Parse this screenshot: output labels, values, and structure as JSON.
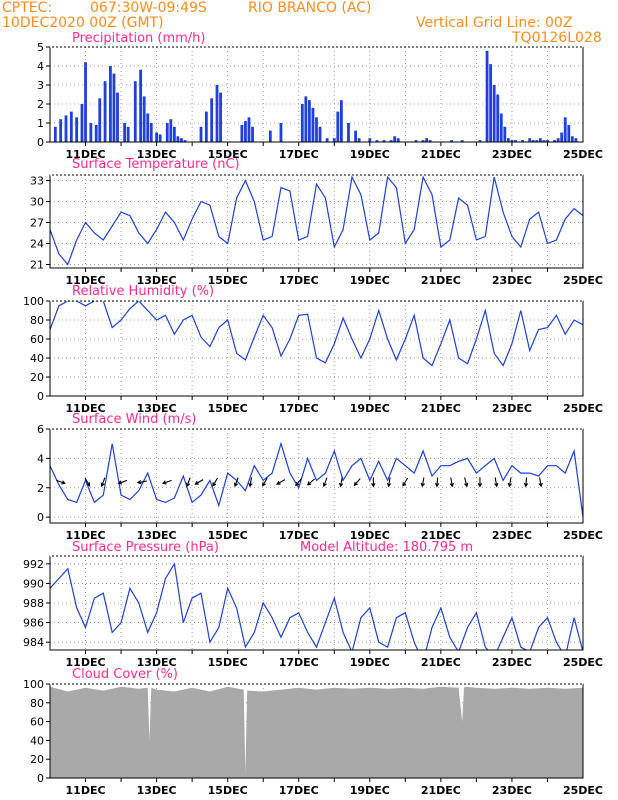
{
  "header": {
    "agency": "CPTEC:",
    "coords": "067:30W-09:49S",
    "station": "RIO BRANCO (AC)",
    "datetime": "10DEC2020 00Z (GMT)",
    "grid_line": "Vertical Grid Line: 00Z",
    "code": "TQ0126L028"
  },
  "x_axis": {
    "start": "10DEC2020 00Z",
    "end": "25DEC2020 00Z",
    "tick_labels": [
      "11DEC",
      "13DEC",
      "15DEC",
      "17DEC",
      "19DEC",
      "21DEC",
      "23DEC",
      "25DEC"
    ]
  },
  "colors": {
    "line": "#1f3fe0",
    "bars": "#1f3fe0",
    "cloud": "#a9a9a9",
    "title": "#ff2a8f",
    "header": "#ff8c1a",
    "arrow": "#000000"
  },
  "chart_data": [
    {
      "id": "precip",
      "type": "bar",
      "title": "Precipitation (mm/h)",
      "ylim": [
        0,
        5
      ],
      "yticks": [
        0,
        1,
        2,
        3,
        4,
        5
      ],
      "grid": true,
      "x_unit": "day since 10DEC2020 00Z",
      "x": [
        0.15,
        0.3,
        0.45,
        0.6,
        0.75,
        0.9,
        1.0,
        1.15,
        1.3,
        1.4,
        1.55,
        1.7,
        1.8,
        1.9,
        2.1,
        2.2,
        2.4,
        2.55,
        2.65,
        2.75,
        2.85,
        3.0,
        3.1,
        3.3,
        3.4,
        3.5,
        3.6,
        3.7,
        3.8,
        3.9,
        4.1,
        4.25,
        4.4,
        4.55,
        4.7,
        4.8,
        5.4,
        5.5,
        5.6,
        5.7,
        6.2,
        6.5,
        7.1,
        7.2,
        7.3,
        7.4,
        7.5,
        7.6,
        7.8,
        8.0,
        8.1,
        8.2,
        8.4,
        8.6,
        8.7,
        9.0,
        9.2,
        9.4,
        9.6,
        9.7,
        9.8,
        10.3,
        10.5,
        10.6,
        10.7,
        11.1,
        11.2,
        11.3,
        11.4,
        11.5,
        11.6,
        12.1,
        12.3,
        12.4,
        12.5,
        12.6,
        12.7,
        12.8,
        12.9,
        13.0,
        13.1,
        13.2,
        13.3,
        13.5,
        13.6,
        13.7,
        13.8,
        13.9,
        14.0,
        14.1,
        14.2,
        14.3,
        14.4,
        14.5,
        14.6,
        14.7,
        14.8,
        14.9
      ],
      "values": [
        0.8,
        1.2,
        1.4,
        1.6,
        1.3,
        2.0,
        4.2,
        1.0,
        0.9,
        2.3,
        3.2,
        4.0,
        3.6,
        2.6,
        1.0,
        0.8,
        3.2,
        3.8,
        2.4,
        1.5,
        1.0,
        0.5,
        0.4,
        1.0,
        1.2,
        0.8,
        0.3,
        0.2,
        0.1,
        0.0,
        0.0,
        0.8,
        1.6,
        2.3,
        3.0,
        2.6,
        0.9,
        1.1,
        1.3,
        0.8,
        0.6,
        1.0,
        2.0,
        2.4,
        2.2,
        1.8,
        1.3,
        0.8,
        0.2,
        0.2,
        1.6,
        2.2,
        1.0,
        0.6,
        0.2,
        0.2,
        0.1,
        0.1,
        0.1,
        0.3,
        0.2,
        0.1,
        0.1,
        0.2,
        0.1,
        0.0,
        0.0,
        0.1,
        0.0,
        0.0,
        0.1,
        0.1,
        4.8,
        4.1,
        3.0,
        2.5,
        1.5,
        0.8,
        0.2,
        0.1,
        0.1,
        0.0,
        0.1,
        0.2,
        0.1,
        0.1,
        0.2,
        0.1,
        0.1,
        0.0,
        0.1,
        0.2,
        0.5,
        1.3,
        0.9,
        0.3,
        0.2,
        0.0
      ]
    },
    {
      "id": "temp",
      "type": "line",
      "title": "Surface Temperature (nC)",
      "ylim": [
        20.5,
        33.8
      ],
      "yticks": [
        21,
        24,
        27,
        30,
        33
      ],
      "grid": true,
      "x_unit": "day since 10DEC2020 00Z",
      "x": [
        0,
        0.25,
        0.5,
        0.75,
        1,
        1.25,
        1.5,
        1.75,
        2,
        2.25,
        2.5,
        2.75,
        3,
        3.25,
        3.5,
        3.75,
        4,
        4.25,
        4.5,
        4.75,
        5,
        5.25,
        5.5,
        5.75,
        6,
        6.25,
        6.5,
        6.75,
        7,
        7.25,
        7.5,
        7.75,
        8,
        8.25,
        8.5,
        8.75,
        9,
        9.25,
        9.5,
        9.75,
        10,
        10.25,
        10.5,
        10.75,
        11,
        11.25,
        11.5,
        11.75,
        12,
        12.25,
        12.5,
        12.75,
        13,
        13.25,
        13.5,
        13.75,
        14,
        14.25,
        14.5,
        14.75,
        15
      ],
      "values": [
        26.0,
        22.5,
        21.0,
        24.5,
        27.0,
        25.5,
        24.5,
        26.5,
        28.5,
        28.0,
        25.5,
        24.0,
        26.0,
        28.5,
        27.0,
        24.5,
        27.5,
        30.0,
        29.5,
        25.0,
        24.0,
        30.5,
        33.0,
        30.0,
        24.5,
        25.0,
        32.0,
        31.5,
        24.5,
        25.0,
        32.5,
        30.5,
        23.5,
        26.0,
        33.5,
        31.0,
        24.5,
        25.5,
        33.5,
        32.0,
        24.0,
        26.0,
        33.5,
        31.0,
        23.5,
        24.5,
        30.5,
        29.5,
        24.5,
        25.0,
        33.5,
        28.5,
        25.0,
        23.5,
        27.5,
        28.5,
        24.0,
        24.5,
        27.5,
        29.0,
        28.0
      ]
    },
    {
      "id": "rh",
      "type": "line",
      "title": "Relative Humidity (%)",
      "ylim": [
        0,
        100
      ],
      "yticks": [
        0,
        20,
        40,
        60,
        80,
        100
      ],
      "grid": true,
      "x_unit": "day since 10DEC2020 00Z",
      "x": [
        0,
        0.25,
        0.5,
        0.75,
        1,
        1.25,
        1.5,
        1.75,
        2,
        2.25,
        2.5,
        2.75,
        3,
        3.25,
        3.5,
        3.75,
        4,
        4.25,
        4.5,
        4.75,
        5,
        5.25,
        5.5,
        5.75,
        6,
        6.25,
        6.5,
        6.75,
        7,
        7.25,
        7.5,
        7.75,
        8,
        8.25,
        8.5,
        8.75,
        9,
        9.25,
        9.5,
        9.75,
        10,
        10.25,
        10.5,
        10.75,
        11,
        11.25,
        11.5,
        11.75,
        12,
        12.25,
        12.5,
        12.75,
        13,
        13.25,
        13.5,
        13.75,
        14,
        14.25,
        14.5,
        14.75,
        15
      ],
      "values": [
        70,
        95,
        100,
        100,
        95,
        100,
        100,
        72,
        80,
        92,
        100,
        90,
        80,
        85,
        65,
        80,
        85,
        62,
        52,
        72,
        80,
        45,
        38,
        62,
        85,
        72,
        42,
        60,
        85,
        86,
        40,
        35,
        55,
        82,
        60,
        40,
        60,
        90,
        60,
        38,
        60,
        85,
        40,
        32,
        55,
        80,
        40,
        34,
        60,
        90,
        45,
        32,
        55,
        90,
        48,
        70,
        72,
        85,
        65,
        80,
        75
      ]
    },
    {
      "id": "wind",
      "type": "line",
      "title": "Surface Wind (m/s)",
      "ylim": [
        -0.4,
        6
      ],
      "yticks": [
        0,
        2,
        4,
        6
      ],
      "grid": true,
      "x_unit": "day since 10DEC2020 00Z",
      "x": [
        0,
        0.25,
        0.5,
        0.75,
        1,
        1.25,
        1.5,
        1.75,
        2,
        2.25,
        2.5,
        2.75,
        3,
        3.25,
        3.5,
        3.75,
        4,
        4.25,
        4.5,
        4.75,
        5,
        5.25,
        5.5,
        5.75,
        6,
        6.25,
        6.5,
        6.75,
        7,
        7.25,
        7.5,
        7.75,
        8,
        8.25,
        8.5,
        8.75,
        9,
        9.25,
        9.5,
        9.75,
        10,
        10.25,
        10.5,
        10.75,
        11,
        11.25,
        11.5,
        11.75,
        12,
        12.25,
        12.5,
        12.75,
        13,
        13.25,
        13.5,
        13.75,
        14,
        14.25,
        14.5,
        14.75,
        15
      ],
      "values": [
        3.5,
        2.2,
        1.2,
        1.0,
        2.5,
        1.0,
        1.5,
        5.0,
        1.5,
        1.2,
        1.8,
        3.0,
        1.2,
        1.0,
        1.3,
        2.8,
        1.0,
        1.5,
        2.5,
        0.8,
        3.0,
        2.5,
        1.8,
        3.5,
        2.5,
        3.0,
        5.0,
        3.0,
        2.0,
        4.0,
        2.5,
        3.0,
        4.5,
        2.5,
        3.5,
        4.0,
        2.5,
        3.8,
        2.5,
        4.0,
        3.5,
        3.0,
        4.5,
        2.8,
        3.5,
        3.5,
        3.8,
        4.0,
        3.0,
        3.5,
        4.0,
        2.5,
        3.5,
        3.0,
        3.0,
        2.8,
        3.5,
        3.5,
        3.0,
        4.5,
        0.0
      ],
      "arrows_x": [
        0.3,
        1.05,
        1.5,
        2.05,
        2.6,
        3.3,
        3.9,
        4.2,
        4.65,
        5.25,
        5.65,
        6.05,
        6.5,
        7.0,
        7.35,
        7.75,
        8.2,
        8.65,
        9.1,
        9.55,
        10.0,
        10.5,
        10.9,
        11.3,
        11.7,
        12.1,
        12.55,
        12.95,
        13.4,
        13.8
      ],
      "arrows_dir_deg": [
        -20,
        -60,
        -110,
        -160,
        -170,
        -160,
        -110,
        -150,
        -120,
        -110,
        -100,
        -120,
        -150,
        -130,
        -140,
        -110,
        -100,
        -130,
        -90,
        -100,
        -120,
        -100,
        -95,
        -80,
        -75,
        -90,
        -80,
        -100,
        -95,
        -80
      ]
    },
    {
      "id": "pressure",
      "type": "line",
      "title": "Surface Pressure (hPa)",
      "annotation": "Model Altitude: 180.795 m",
      "ylim": [
        983.2,
        992.8
      ],
      "yticks": [
        984,
        986,
        988,
        990,
        992
      ],
      "grid": true,
      "x_unit": "day since 10DEC2020 00Z",
      "x": [
        0,
        0.25,
        0.5,
        0.75,
        1,
        1.25,
        1.5,
        1.75,
        2,
        2.25,
        2.5,
        2.75,
        3,
        3.25,
        3.5,
        3.75,
        4,
        4.25,
        4.5,
        4.75,
        5,
        5.25,
        5.5,
        5.75,
        6,
        6.25,
        6.5,
        6.75,
        7,
        7.25,
        7.5,
        7.75,
        8,
        8.25,
        8.5,
        8.75,
        9,
        9.25,
        9.5,
        9.75,
        10,
        10.25,
        10.5,
        10.75,
        11,
        11.25,
        11.5,
        11.75,
        12,
        12.25,
        12.5,
        12.75,
        13,
        13.25,
        13.5,
        13.75,
        14,
        14.25,
        14.5,
        14.75,
        15
      ],
      "values": [
        989.5,
        990.5,
        991.5,
        987.5,
        985.5,
        988.5,
        989.0,
        985.0,
        986.0,
        989.5,
        988.0,
        985.0,
        987.0,
        990.5,
        992.0,
        986.0,
        988.5,
        989.0,
        984.0,
        985.5,
        989.5,
        987.5,
        983.5,
        985.0,
        988.0,
        986.5,
        984.5,
        986.5,
        987.0,
        985.0,
        983.5,
        986.0,
        988.5,
        985.0,
        983.0,
        986.5,
        987.5,
        984.0,
        983.5,
        986.5,
        987.0,
        984.0,
        982.0,
        985.5,
        987.5,
        984.5,
        983.0,
        985.5,
        987.0,
        983.5,
        982.5,
        984.5,
        986.5,
        983.5,
        983.0,
        985.5,
        986.5,
        984.0,
        982.5,
        986.5,
        983.0
      ]
    },
    {
      "id": "cloud",
      "type": "area",
      "title": "Cloud Cover (%)",
      "ylim": [
        0,
        100
      ],
      "yticks": [
        0,
        20,
        40,
        60,
        80,
        100
      ],
      "grid": true,
      "x_unit": "day since 10DEC2020 00Z",
      "x": [
        0,
        0.5,
        1,
        1.5,
        2,
        2.5,
        2.75,
        2.8,
        2.85,
        3,
        3.5,
        4,
        4.5,
        5,
        5.45,
        5.5,
        5.55,
        6,
        6.5,
        7,
        7.5,
        8,
        8.5,
        9,
        9.5,
        10,
        10.5,
        11,
        11.5,
        11.6,
        11.65,
        11.7,
        12,
        12.5,
        13,
        13.5,
        14,
        14.5,
        15
      ],
      "values": [
        97,
        92,
        96,
        93,
        97,
        95,
        96,
        40,
        96,
        94,
        92,
        96,
        92,
        97,
        94,
        5,
        93,
        92,
        94,
        96,
        94,
        96,
        95,
        96,
        95,
        96,
        95,
        97,
        96,
        60,
        96,
        97,
        96,
        95,
        96,
        95,
        96,
        95,
        96
      ]
    }
  ]
}
